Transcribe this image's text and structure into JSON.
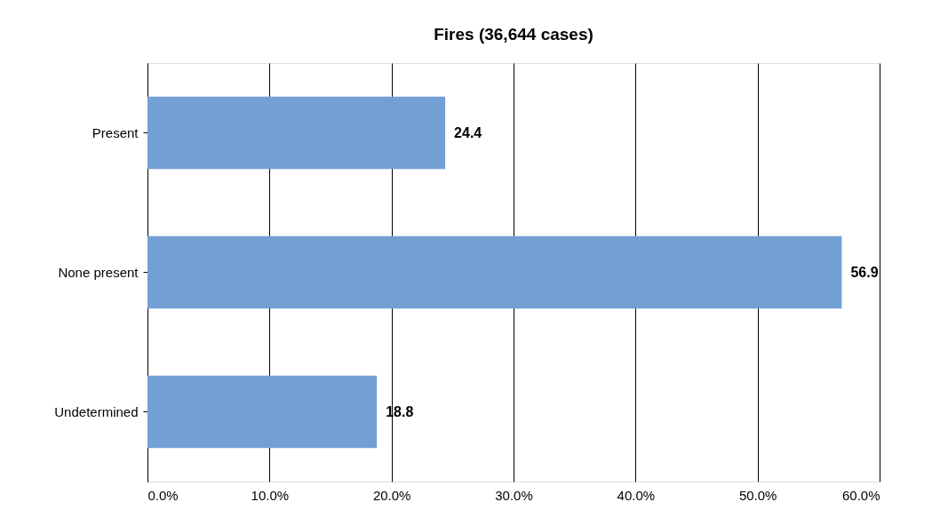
{
  "chart_data": {
    "type": "bar",
    "orientation": "horizontal",
    "title": "Fires (36,644 cases)",
    "categories": [
      "Present",
      "None present",
      "Undetermined"
    ],
    "values": [
      24.4,
      56.9,
      18.8
    ],
    "color": "#729fd4",
    "xlim": [
      0,
      60
    ],
    "xticks": [
      {
        "value": 0,
        "label": "0.0%"
      },
      {
        "value": 10,
        "label": "10.0%"
      },
      {
        "value": 20,
        "label": "20.0%"
      },
      {
        "value": 30,
        "label": "30.0%"
      },
      {
        "value": 40,
        "label": "40.0%"
      },
      {
        "value": 50,
        "label": "50.0%"
      },
      {
        "value": 60,
        "label": "60.0%"
      }
    ],
    "grid": "x",
    "data_labels": true
  }
}
